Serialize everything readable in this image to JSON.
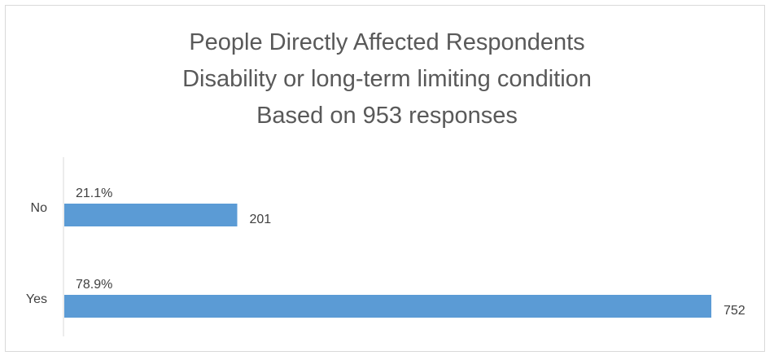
{
  "chart_data": {
    "type": "bar",
    "orientation": "horizontal",
    "title_lines": [
      "People Directly Affected Respondents",
      "Disability or long-term limiting condition",
      "Based on 953 responses"
    ],
    "categories": [
      "No",
      "Yes"
    ],
    "series": [
      {
        "values": [
          201,
          752
        ]
      }
    ],
    "percent_labels": [
      "21.1%",
      "78.9%"
    ],
    "xlim": [
      0,
      752
    ],
    "grid": false,
    "legend": "none",
    "bar_color": "#5b9bd5",
    "axis_color": "#d9d9d9",
    "text_color": "#404040"
  }
}
